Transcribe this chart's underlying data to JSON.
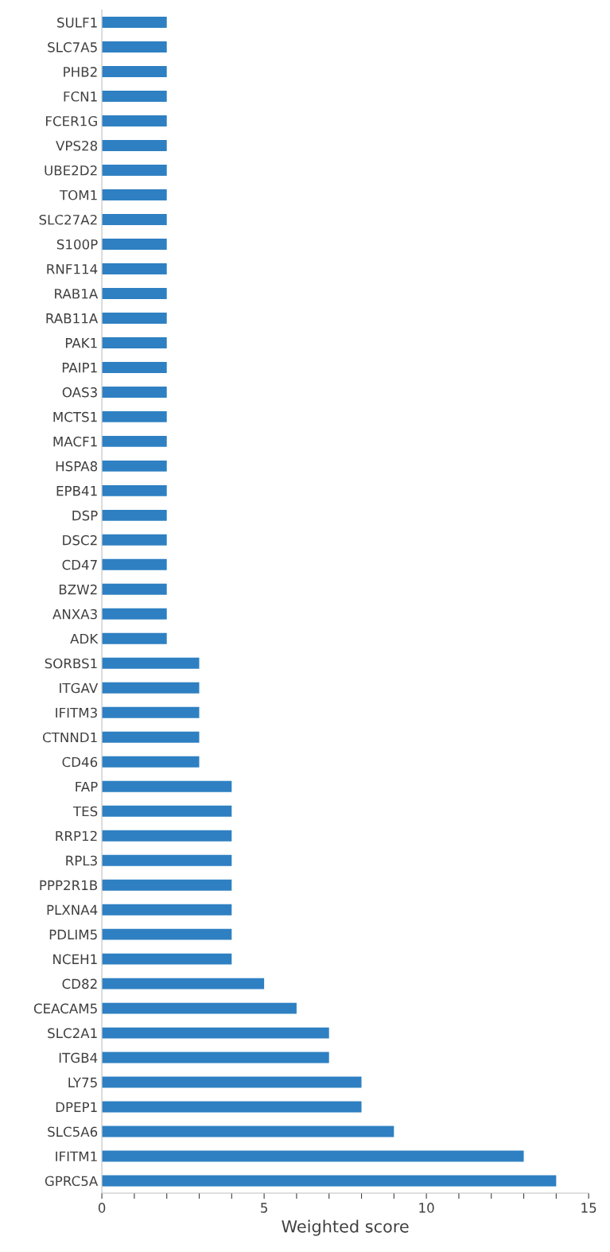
{
  "chart_data": {
    "type": "bar",
    "orientation": "horizontal",
    "xlabel": "Weighted score",
    "categories": [
      "SULF1",
      "SLC7A5",
      "PHB2",
      "FCN1",
      "FCER1G",
      "VPS28",
      "UBE2D2",
      "TOM1",
      "SLC27A2",
      "S100P",
      "RNF114",
      "RAB1A",
      "RAB11A",
      "PAK1",
      "PAIP1",
      "OAS3",
      "MCTS1",
      "MACF1",
      "HSPA8",
      "EPB41",
      "DSP",
      "DSC2",
      "CD47",
      "BZW2",
      "ANXA3",
      "ADK",
      "SORBS1",
      "ITGAV",
      "IFITM3",
      "CTNND1",
      "CD46",
      "FAP",
      "TES",
      "RRP12",
      "RPL3",
      "PPP2R1B",
      "PLXNA4",
      "PDLIM5",
      "NCEH1",
      "CD82",
      "CEACAM5",
      "SLC2A1",
      "ITGB4",
      "LY75",
      "DPEP1",
      "SLC5A6",
      "IFITM1",
      "GPRC5A"
    ],
    "values": [
      2,
      2,
      2,
      2,
      2,
      2,
      2,
      2,
      2,
      2,
      2,
      2,
      2,
      2,
      2,
      2,
      2,
      2,
      2,
      2,
      2,
      2,
      2,
      2,
      2,
      2,
      3,
      3,
      3,
      3,
      3,
      4,
      4,
      4,
      4,
      4,
      4,
      4,
      4,
      5,
      6,
      7,
      7,
      8,
      8,
      9,
      13,
      14
    ],
    "color": "#2e80c2",
    "xlim": [
      0,
      15
    ],
    "xticks": [
      0,
      {
        "value": 1,
        "label": null
      },
      {
        "value": 2,
        "label": null
      },
      {
        "value": 3,
        "label": null
      },
      {
        "value": 4,
        "label": null
      },
      5,
      {
        "value": 6,
        "label": null
      },
      {
        "value": 7,
        "label": null
      },
      {
        "value": 8,
        "label": null
      },
      {
        "value": 9,
        "label": null
      },
      10,
      {
        "value": 11,
        "label": null
      },
      {
        "value": 12,
        "label": null
      },
      {
        "value": 13,
        "label": null
      },
      {
        "value": 14,
        "label": null
      },
      15
    ],
    "grid": false,
    "legend": false
  }
}
